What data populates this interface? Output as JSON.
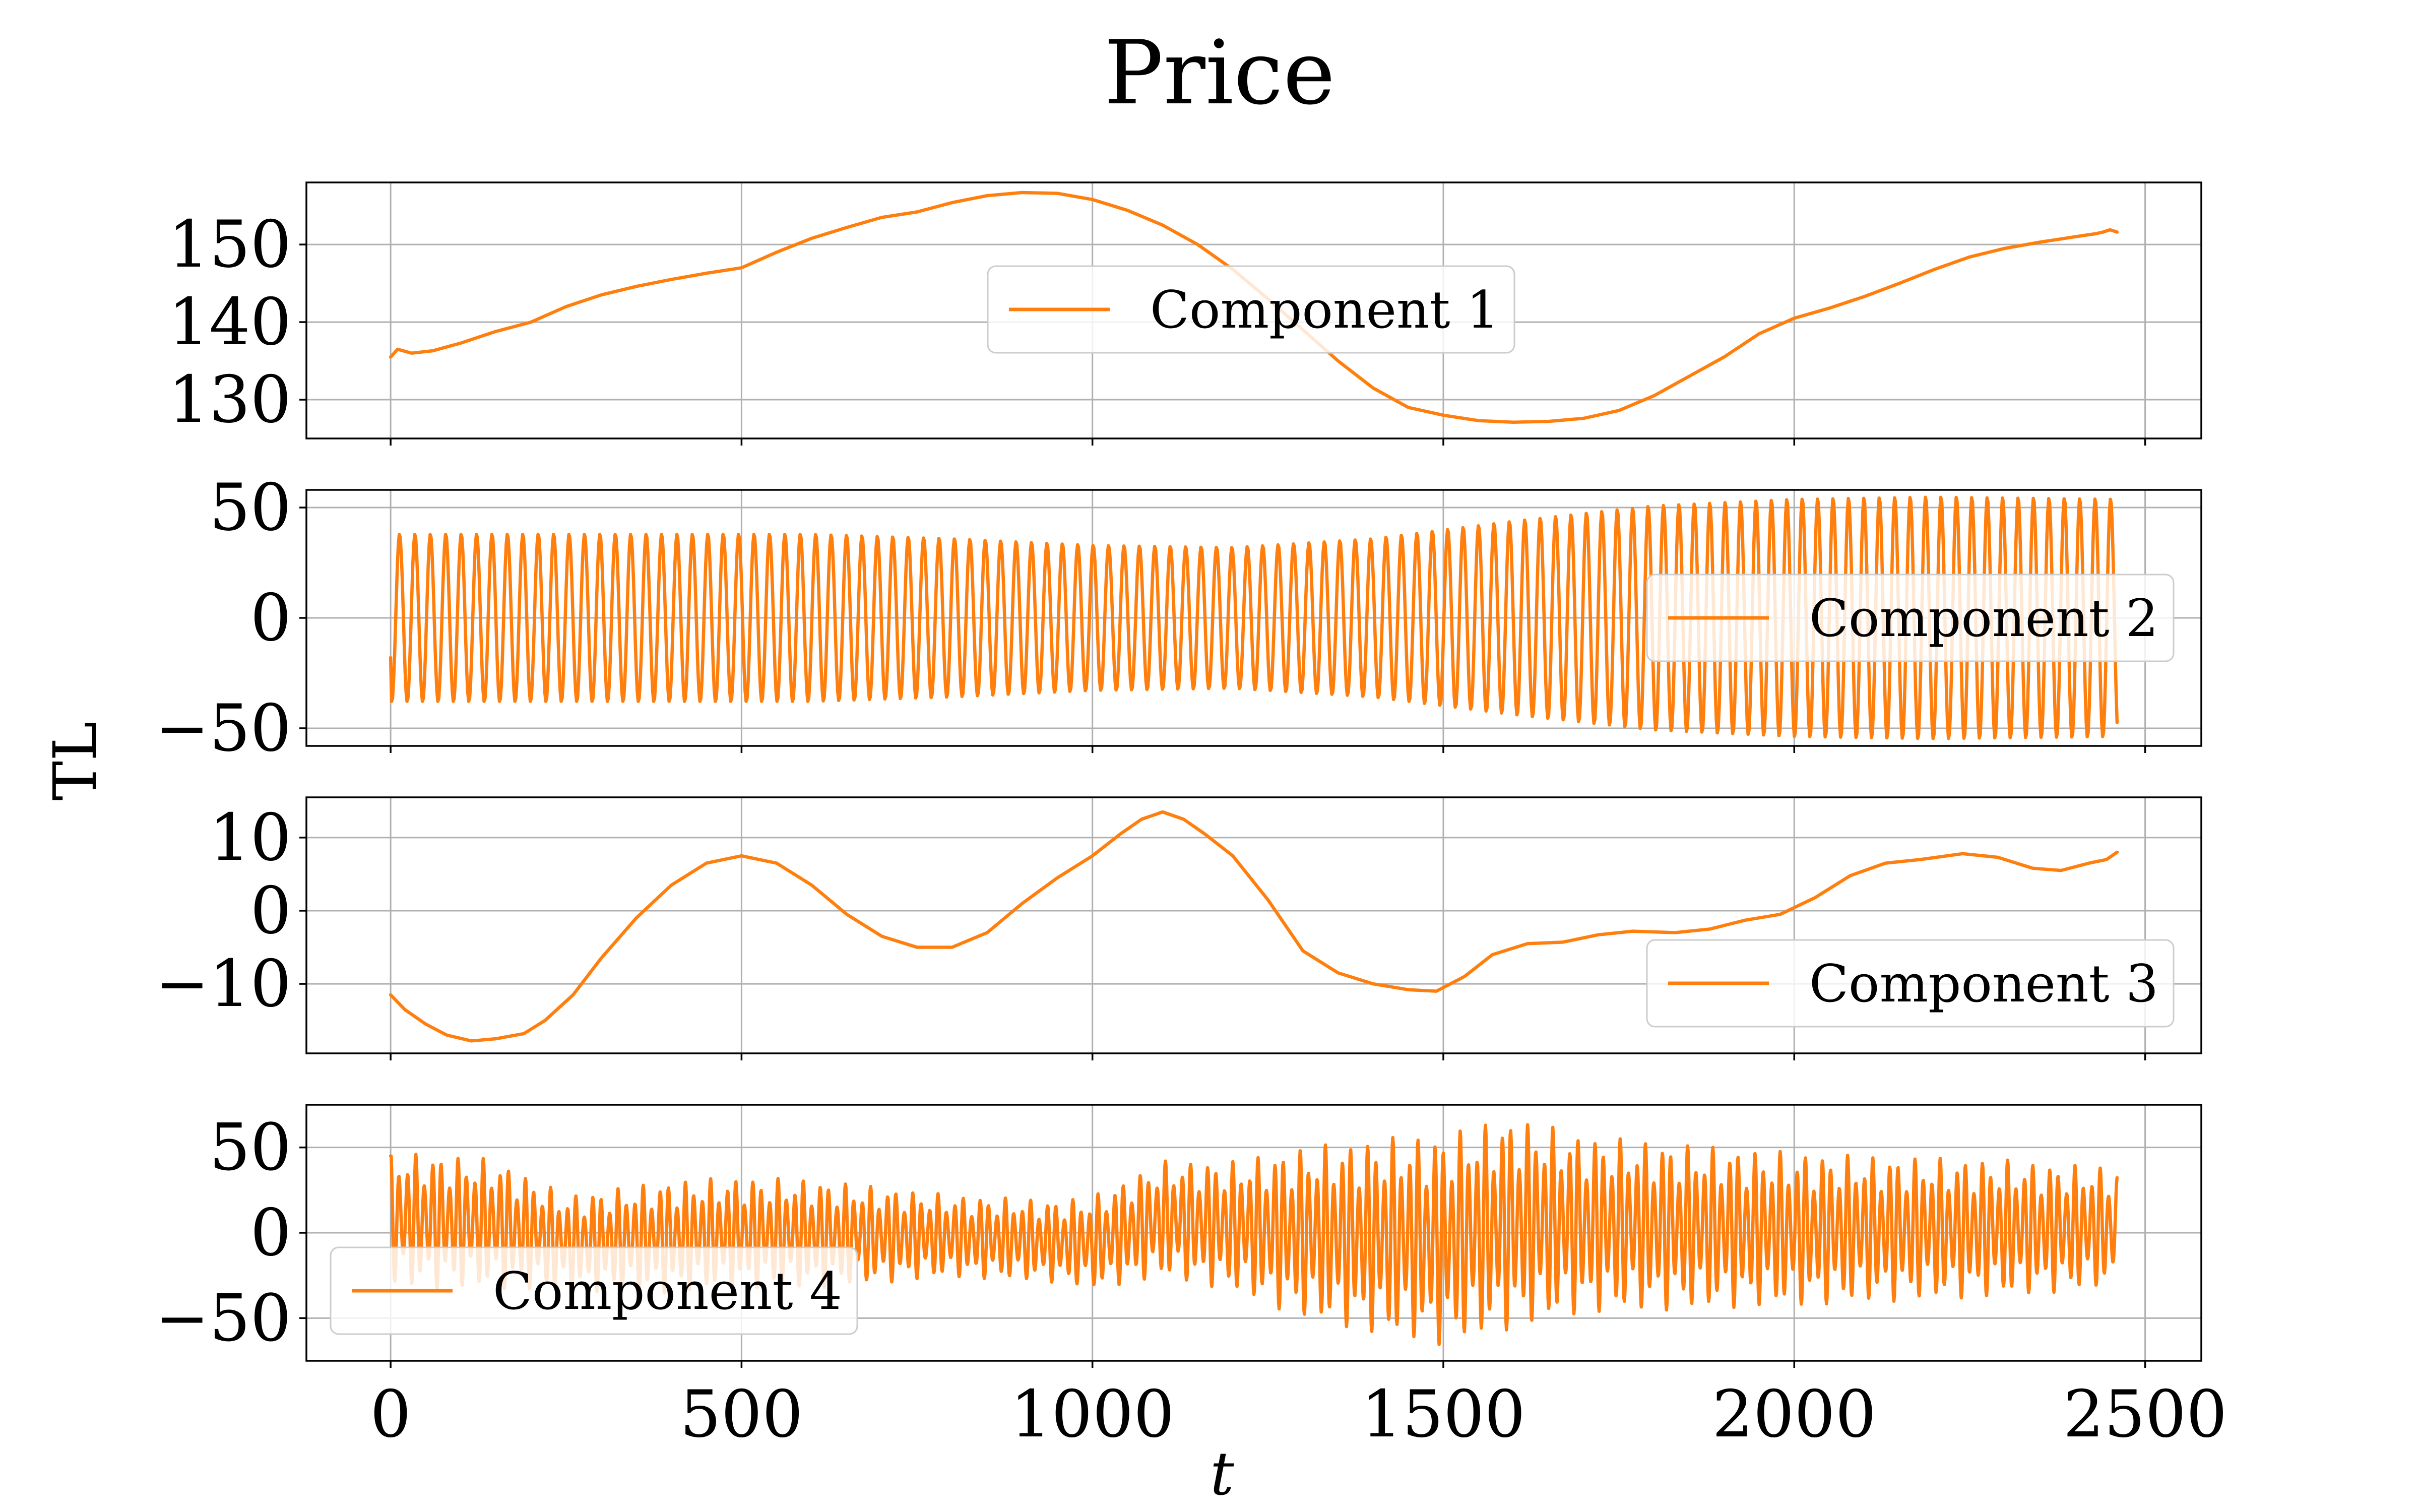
{
  "title": "Price",
  "colors": {
    "series": "#ff7f0e",
    "grid": "#b0b0b0",
    "frame": "#000000"
  },
  "chart_data": {
    "type": "line",
    "title": "Price",
    "xlabel": "t",
    "ylabel": "TL",
    "xlim": [
      -120,
      2580
    ],
    "x_ticks": [
      0,
      500,
      1000,
      1500,
      2000,
      2500
    ],
    "x_tick_labels": [
      "0",
      "500",
      "1000",
      "1500",
      "2000",
      "2500"
    ],
    "grid": true,
    "panels": [
      {
        "series_name": "Component 1",
        "legend_position": "center",
        "ylim": [
          125,
          158
        ],
        "y_ticks": [
          130,
          140,
          150
        ],
        "y_tick_labels": [
          "130",
          "140",
          "150"
        ],
        "x": [
          0,
          10,
          30,
          60,
          100,
          150,
          200,
          250,
          300,
          350,
          400,
          450,
          500,
          550,
          600,
          650,
          700,
          750,
          800,
          850,
          900,
          950,
          1000,
          1050,
          1100,
          1150,
          1200,
          1250,
          1300,
          1350,
          1400,
          1450,
          1500,
          1550,
          1600,
          1650,
          1700,
          1750,
          1800,
          1850,
          1900,
          1950,
          2000,
          2050,
          2100,
          2150,
          2200,
          2250,
          2300,
          2350,
          2400,
          2430,
          2440,
          2450,
          2460
        ],
        "y": [
          135.5,
          136.5,
          136,
          136.3,
          137.3,
          138.8,
          140,
          142,
          143.5,
          144.6,
          145.5,
          146.3,
          147,
          149,
          150.8,
          152.2,
          153.5,
          154.2,
          155.4,
          156.3,
          156.7,
          156.6,
          155.8,
          154.4,
          152.5,
          150,
          146.8,
          143,
          139,
          135,
          131.5,
          129,
          128,
          127.3,
          127.1,
          127.2,
          127.6,
          128.6,
          130.5,
          133,
          135.5,
          138.5,
          140.5,
          141.8,
          143.3,
          145,
          146.8,
          148.4,
          149.5,
          150.3,
          151,
          151.4,
          151.6,
          151.9,
          151.6
        ]
      },
      {
        "series_name": "Component 2",
        "legend_position": "center right",
        "ylim": [
          -58,
          58
        ],
        "y_ticks": [
          -50,
          0,
          50
        ],
        "y_tick_labels": [
          "−50",
          "0",
          "50"
        ],
        "oscillation": {
          "x_start": 0,
          "x_end": 2460,
          "cycles": 112,
          "start_value": -18
        },
        "envelope_x": [
          0,
          200,
          400,
          600,
          800,
          1000,
          1200,
          1400,
          1600,
          1800,
          2000,
          2200,
          2460
        ],
        "envelope_amplitude": [
          38,
          38,
          38,
          38,
          36,
          33,
          32,
          36,
          44,
          51,
          54,
          55,
          54
        ]
      },
      {
        "series_name": "Component 3",
        "legend_position": "lower right",
        "ylim": [
          -19.5,
          15.5
        ],
        "y_ticks": [
          -10,
          0,
          10
        ],
        "y_tick_labels": [
          "−10",
          "0",
          "10"
        ],
        "x": [
          0,
          20,
          50,
          80,
          115,
          150,
          190,
          220,
          260,
          300,
          350,
          400,
          450,
          500,
          550,
          600,
          650,
          700,
          750,
          800,
          850,
          900,
          950,
          1000,
          1040,
          1070,
          1100,
          1130,
          1160,
          1200,
          1250,
          1300,
          1350,
          1400,
          1450,
          1490,
          1530,
          1570,
          1620,
          1670,
          1720,
          1770,
          1830,
          1880,
          1930,
          1980,
          2030,
          2080,
          2130,
          2180,
          2240,
          2290,
          2340,
          2380,
          2420,
          2445,
          2460
        ],
        "y": [
          -11.5,
          -13.5,
          -15.5,
          -17,
          -17.8,
          -17.5,
          -16.8,
          -15,
          -11.5,
          -6.5,
          -1,
          3.5,
          6.5,
          7.5,
          6.5,
          3.5,
          -0.5,
          -3.5,
          -5,
          -5,
          -3,
          1,
          4.5,
          7.5,
          10.5,
          12.5,
          13.5,
          12.5,
          10.5,
          7.5,
          1.5,
          -5.5,
          -8.5,
          -10,
          -10.8,
          -11,
          -9,
          -6,
          -4.5,
          -4.3,
          -3.3,
          -2.8,
          -3,
          -2.5,
          -1.3,
          -0.5,
          1.8,
          4.8,
          6.5,
          7,
          7.8,
          7.3,
          5.8,
          5.5,
          6.5,
          7,
          8
        ]
      },
      {
        "series_name": "Component 4",
        "legend_position": "lower left",
        "ylim": [
          -75,
          75
        ],
        "y_ticks": [
          -50,
          0,
          50
        ],
        "y_tick_labels": [
          "−50",
          "0",
          "50"
        ],
        "oscillation": {
          "x_start": 0,
          "x_end": 2460,
          "cycles": 205,
          "start_value": 45
        },
        "envelope_x": [
          0,
          150,
          250,
          400,
          600,
          800,
          950,
          1100,
          1200,
          1300,
          1400,
          1500,
          1600,
          1700,
          1900,
          2100,
          2300,
          2460
        ],
        "envelope_amplitude": [
          40,
          38,
          28,
          33,
          32,
          24,
          24,
          34,
          38,
          50,
          57,
          62,
          62,
          52,
          47,
          43,
          40,
          35
        ],
        "center_x": [
          0,
          150,
          250,
          500,
          800,
          1000,
          1100,
          1300,
          1500,
          1600,
          2000,
          2460
        ],
        "center_value": [
          8,
          5,
          -6,
          0,
          -2,
          -6,
          8,
          0,
          -4,
          6,
          2,
          3
        ]
      }
    ]
  }
}
